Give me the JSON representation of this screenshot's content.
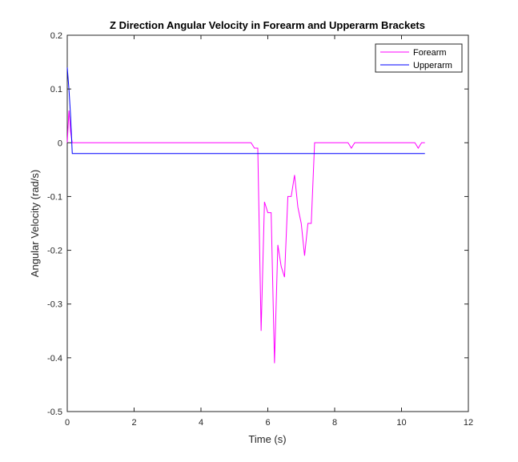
{
  "chart_data": {
    "type": "line",
    "title": "Z Direction Angular Velocity in Forearm and Upperarm Brackets",
    "xlabel": "Time (s)",
    "ylabel": "Angular Velocity (rad/s)",
    "xlim": [
      0,
      12
    ],
    "ylim": [
      -0.5,
      0.2
    ],
    "xticks": [
      0,
      2,
      4,
      6,
      8,
      10,
      12
    ],
    "xtick_labels": [
      "0",
      "2",
      "4",
      "6",
      "8",
      "10",
      "12"
    ],
    "yticks": [
      0.2,
      0.1,
      0,
      -0.1,
      -0.2,
      -0.3,
      -0.4,
      -0.5
    ],
    "ytick_labels": [
      "0.2",
      "0.1",
      "0",
      "-0.1",
      "-0.2",
      "-0.3",
      "-0.4",
      "-0.5"
    ],
    "grid": false,
    "legend": "top-right",
    "series": [
      {
        "name": "Forearm",
        "color": "#ff00ff",
        "x": [
          0,
          0.05,
          0.1,
          0.15,
          0.2,
          1,
          2,
          3,
          4,
          5,
          5.5,
          5.6,
          5.7,
          5.8,
          5.9,
          6.0,
          6.1,
          6.2,
          6.3,
          6.4,
          6.5,
          6.6,
          6.7,
          6.8,
          6.9,
          7.0,
          7.1,
          7.2,
          7.3,
          7.4,
          7.5,
          7.6,
          8.0,
          8.4,
          8.5,
          8.6,
          9.0,
          10.0,
          10.4,
          10.5,
          10.6,
          10.7
        ],
        "y": [
          0,
          0.06,
          0.02,
          0,
          0,
          0,
          0,
          0,
          0,
          0,
          0,
          -0.01,
          -0.01,
          -0.35,
          -0.11,
          -0.13,
          -0.13,
          -0.41,
          -0.19,
          -0.23,
          -0.25,
          -0.1,
          -0.1,
          -0.06,
          -0.12,
          -0.15,
          -0.21,
          -0.15,
          -0.15,
          0,
          0,
          0,
          0,
          0,
          -0.01,
          0,
          0,
          0,
          0,
          -0.01,
          0,
          0
        ]
      },
      {
        "name": "Upperarm",
        "color": "#0000ff",
        "x": [
          0,
          0.05,
          0.1,
          0.15,
          0.2,
          1,
          2,
          4,
          6,
          8,
          10,
          10.7
        ],
        "y": [
          0.14,
          0.1,
          0.05,
          -0.02,
          -0.02,
          -0.02,
          -0.02,
          -0.02,
          -0.02,
          -0.02,
          -0.02,
          -0.02
        ]
      }
    ]
  }
}
